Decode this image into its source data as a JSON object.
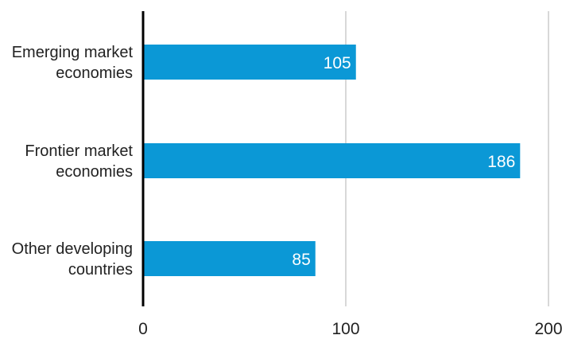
{
  "chart_data": {
    "type": "bar",
    "orientation": "horizontal",
    "categories": [
      [
        "Emerging market",
        "economies"
      ],
      [
        "Frontier market",
        "economies"
      ],
      [
        "Other developing",
        "countries"
      ]
    ],
    "values": [
      105,
      186,
      85
    ],
    "x_ticks": [
      0,
      100,
      200
    ],
    "xlim": [
      0,
      200
    ],
    "grid": true,
    "legend": "none",
    "colors": {
      "bar": "#0b98d6",
      "bar_label": "#ffffff",
      "grid": "#cccccc",
      "axis": "#000000",
      "text": "#222222"
    }
  }
}
